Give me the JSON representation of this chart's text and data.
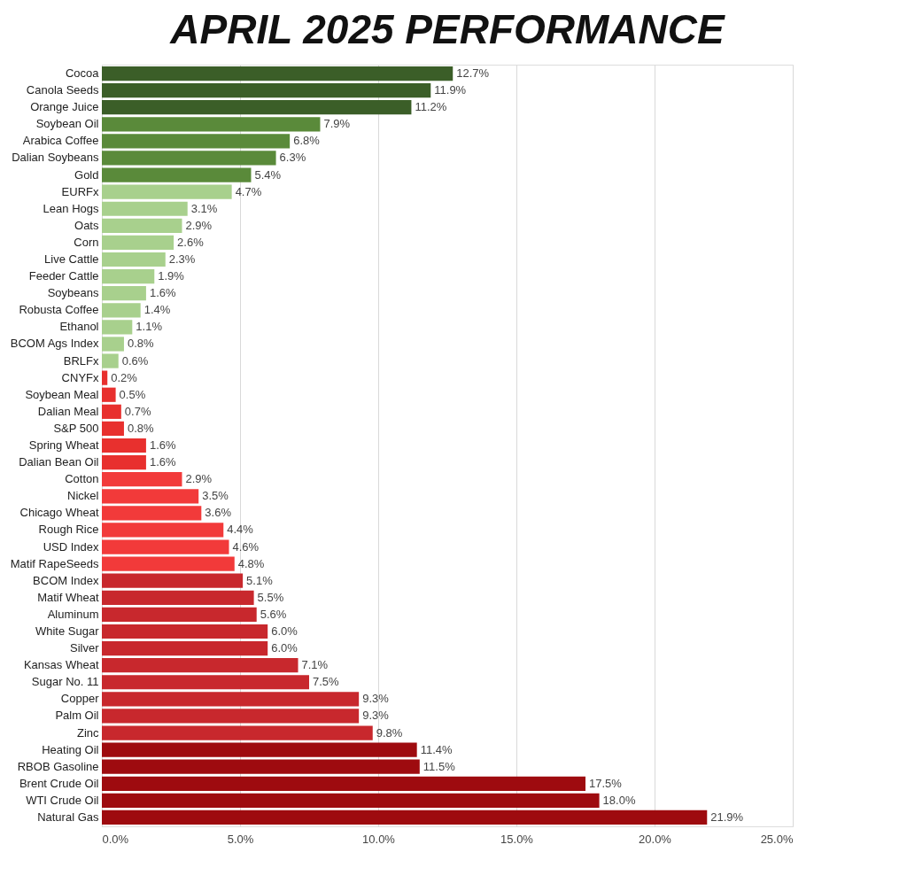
{
  "chart_data": {
    "type": "bar",
    "orientation": "horizontal",
    "title": "APRIL 2025 PERFORMANCE",
    "categories": [
      "Cocoa",
      "Canola Seeds",
      "Orange Juice",
      "Soybean Oil",
      "Arabica Coffee",
      "Dalian Soybeans",
      "Gold",
      "EURFx",
      "Lean Hogs",
      "Oats",
      "Corn",
      "Live Cattle",
      "Feeder Cattle",
      "Soybeans",
      "Robusta Coffee",
      "Ethanol",
      "BCOM Ags Index",
      "BRLFx",
      "CNYFx",
      "Soybean Meal",
      "Dalian Meal",
      "S&P 500",
      "Spring Wheat",
      "Dalian Bean Oil",
      "Cotton",
      "Nickel",
      "Chicago Wheat",
      "Rough Rice",
      "USD Index",
      "Matif RapeSeeds",
      "BCOM Index",
      "Matif Wheat",
      "Aluminum",
      "White Sugar",
      "Silver",
      "Kansas Wheat",
      "Sugar No. 11",
      "Copper",
      "Palm Oil",
      "Zinc",
      "Heating Oil",
      "RBOB Gasoline",
      "Brent Crude Oil",
      "WTI Crude Oil",
      "Natural Gas"
    ],
    "values": [
      12.7,
      11.9,
      11.2,
      7.9,
      6.8,
      6.3,
      5.4,
      4.7,
      3.1,
      2.9,
      2.6,
      2.3,
      1.9,
      1.6,
      1.4,
      1.1,
      0.8,
      0.6,
      0.2,
      0.5,
      0.7,
      0.8,
      1.6,
      1.6,
      2.9,
      3.5,
      3.6,
      4.4,
      4.6,
      4.8,
      5.1,
      5.5,
      5.6,
      6.0,
      6.0,
      7.1,
      7.5,
      9.3,
      9.3,
      9.8,
      11.4,
      11.5,
      17.5,
      18.0,
      21.9
    ],
    "value_labels": [
      "12.7%",
      "11.9%",
      "11.2%",
      "7.9%",
      "6.8%",
      "6.3%",
      "5.4%",
      "4.7%",
      "3.1%",
      "2.9%",
      "2.6%",
      "2.3%",
      "1.9%",
      "1.6%",
      "1.4%",
      "1.1%",
      "0.8%",
      "0.6%",
      "0.2%",
      "0.5%",
      "0.7%",
      "0.8%",
      "1.6%",
      "1.6%",
      "2.9%",
      "3.5%",
      "3.6%",
      "4.4%",
      "4.6%",
      "4.8%",
      "5.1%",
      "5.5%",
      "5.6%",
      "6.0%",
      "6.0%",
      "7.1%",
      "7.5%",
      "9.3%",
      "9.3%",
      "9.8%",
      "11.4%",
      "11.5%",
      "17.5%",
      "18.0%",
      "21.9%"
    ],
    "colors": [
      "#3b5e28",
      "#3b5e28",
      "#3b5e28",
      "#5a8a3a",
      "#5a8a3a",
      "#5a8a3a",
      "#5a8a3a",
      "#a8d08d",
      "#a8d08d",
      "#a8d08d",
      "#a8d08d",
      "#a8d08d",
      "#a8d08d",
      "#a8d08d",
      "#a8d08d",
      "#a8d08d",
      "#a8d08d",
      "#a8d08d",
      "#e8302e",
      "#e8302e",
      "#e8302e",
      "#e8302e",
      "#e8302e",
      "#e8302e",
      "#f23a3a",
      "#f23a3a",
      "#f23a3a",
      "#f23a3a",
      "#f23a3a",
      "#f23a3a",
      "#c8282d",
      "#c8282d",
      "#c8282d",
      "#c8282d",
      "#c8282d",
      "#c8282d",
      "#c8282d",
      "#c8282d",
      "#c8282d",
      "#c8282d",
      "#9e0b0f",
      "#9e0b0f",
      "#9e0b0f",
      "#9e0b0f",
      "#9e0b0f"
    ],
    "xlim": [
      0,
      25
    ],
    "xticks": [
      {
        "value": 0,
        "label": "0.0%"
      },
      {
        "value": 5,
        "label": "5.0%"
      },
      {
        "value": 10,
        "label": "10.0%"
      },
      {
        "value": 15,
        "label": "15.0%"
      },
      {
        "value": 20,
        "label": "20.0%"
      },
      {
        "value": 25,
        "label": "25.0%"
      }
    ],
    "grid": "x"
  }
}
